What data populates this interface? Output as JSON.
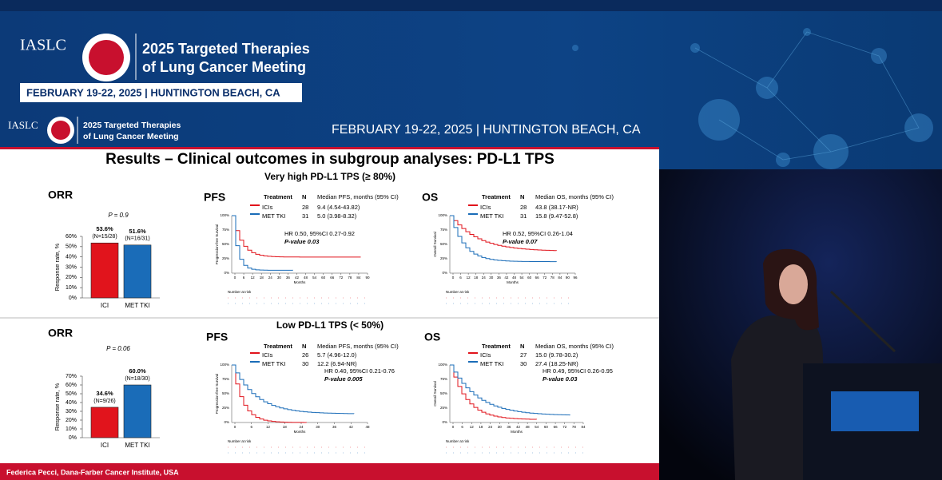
{
  "banner": {
    "org": "IASLC",
    "line1": "2025 Targeted Therapies",
    "line2": "of Lung Cancer Meeting",
    "dates": "FEBRUARY 19-22, 2025 | HUNTINGTON BEACH, CA"
  },
  "header": {
    "org": "IASLC",
    "line1": "2025 Targeted Therapies",
    "line2": "of Lung Cancer Meeting",
    "dates": "FEBRUARY 19-22, 2025 | HUNTINGTON BEACH, CA"
  },
  "slide": {
    "title": "Results – Clinical outcomes in subgroup analyses: PD-L1 TPS",
    "footer": "Federica Pecci, Dana-Farber Cancer Institute, USA",
    "panels": [
      {
        "subtitle": "Very high PD-L1 TPS (≥ 80%)",
        "orr": {
          "title": "ORR",
          "p_value": "P = 0.9",
          "y_label": "Response rate, %",
          "ylim": [
            0,
            60
          ],
          "yticks": [
            {
              "value": 0,
              "label": "0%"
            },
            {
              "value": 10,
              "label": "10%"
            },
            {
              "value": 20,
              "label": "20%"
            },
            {
              "value": 30,
              "label": "30%"
            },
            {
              "value": 40,
              "label": "40%"
            },
            {
              "value": 50,
              "label": "50%"
            },
            {
              "value": 60,
              "label": "60%"
            }
          ],
          "categories": [
            "ICI",
            "MET TKI"
          ],
          "values": [
            53.6,
            51.6
          ],
          "value_labels": [
            "53.6%",
            "51.6%"
          ],
          "n_labels": [
            "(N=15/28)",
            "(N=16/31)"
          ],
          "colors": [
            "#e1141c",
            "#1a6cb8"
          ]
        },
        "pfs": {
          "title": "PFS",
          "header": [
            "Treatment",
            "N",
            "Median PFS, months (95% CI)"
          ],
          "rows": [
            [
              "ICIs",
              "28",
              "9.4 (4.54-43.82)"
            ],
            [
              "MET TKI",
              "31",
              "5.0 (3.98-8.32)"
            ]
          ],
          "hr": "HR 0.50, 95%CI 0.27-0.92",
          "p_value": "P-value 0.03",
          "y_label": "Progression-free Survival",
          "x_label": "Months",
          "risk_label": "Number at risk",
          "yticks": [
            "0%",
            "25%",
            "50%",
            "75%",
            "100%"
          ],
          "xticks": [
            0,
            6,
            12,
            18,
            24,
            30,
            36,
            42,
            48,
            54,
            60,
            66,
            72,
            78,
            84,
            90
          ]
        },
        "os": {
          "title": "OS",
          "header": [
            "Treatment",
            "N",
            "Median OS, months (95% CI)"
          ],
          "rows": [
            [
              "ICIs",
              "28",
              "43.8 (38.17-NR)"
            ],
            [
              "MET TKI",
              "31",
              "15.8 (9.47-52.8)"
            ]
          ],
          "hr": "HR 0.52, 95%CI 0.26-1.04",
          "p_value": "P-value 0.07",
          "y_label": "Overall Survival",
          "x_label": "Months",
          "risk_label": "Number at risk",
          "yticks": [
            "0%",
            "25%",
            "50%",
            "75%",
            "100%"
          ],
          "xticks": [
            0,
            6,
            12,
            18,
            24,
            30,
            36,
            42,
            48,
            54,
            60,
            66,
            72,
            78,
            84,
            90,
            96
          ]
        }
      },
      {
        "subtitle": "Low PD-L1 TPS (< 50%)",
        "orr": {
          "title": "ORR",
          "p_value": "P = 0.06",
          "y_label": "Response rate, %",
          "ylim": [
            0,
            70
          ],
          "yticks": [
            {
              "value": 0,
              "label": "0%"
            },
            {
              "value": 10,
              "label": "10%"
            },
            {
              "value": 20,
              "label": "20%"
            },
            {
              "value": 30,
              "label": "30%"
            },
            {
              "value": 40,
              "label": "40%"
            },
            {
              "value": 50,
              "label": "50%"
            },
            {
              "value": 60,
              "label": "60%"
            },
            {
              "value": 70,
              "label": "70%"
            }
          ],
          "categories": [
            "ICI",
            "MET TKI"
          ],
          "values": [
            34.6,
            60.0
          ],
          "value_labels": [
            "34.6%",
            "60.0%"
          ],
          "n_labels": [
            "(N=9/26)",
            "(N=18/30)"
          ],
          "colors": [
            "#e1141c",
            "#1a6cb8"
          ]
        },
        "pfs": {
          "title": "PFS",
          "header": [
            "Treatment",
            "N",
            "Median PFS, months (95% CI)"
          ],
          "rows": [
            [
              "ICIs",
              "26",
              "5.7 (4.96-12.0)"
            ],
            [
              "MET TKI",
              "30",
              "12.2 (6.94-NR)"
            ]
          ],
          "hr": "HR 0.40, 95%CI 0.21-0.76",
          "p_value": "P-value 0.005",
          "y_label": "Progression-free Survival",
          "x_label": "Months",
          "risk_label": "Number at risk",
          "yticks": [
            "0%",
            "25%",
            "50%",
            "75%",
            "100%"
          ],
          "xticks": [
            0,
            6,
            12,
            18,
            24,
            30,
            36,
            42,
            48
          ]
        },
        "os": {
          "title": "OS",
          "header": [
            "Treatment",
            "N",
            "Median OS, months (95% CI)"
          ],
          "rows": [
            [
              "ICIs",
              "27",
              "15.0 (9.78-30.2)"
            ],
            [
              "MET TKI",
              "30",
              "27.4 (18.25-NR)"
            ]
          ],
          "hr": "HR 0.49, 95%CI 0.26-0.95",
          "p_value": "P-value 0.03",
          "y_label": "Overall Survival",
          "x_label": "Months",
          "risk_label": "Number at risk",
          "yticks": [
            "0%",
            "25%",
            "50%",
            "75%",
            "100%"
          ],
          "xticks": [
            0,
            6,
            12,
            18,
            24,
            30,
            36,
            42,
            48,
            54,
            60,
            66,
            72,
            78,
            84
          ]
        }
      }
    ]
  }
}
